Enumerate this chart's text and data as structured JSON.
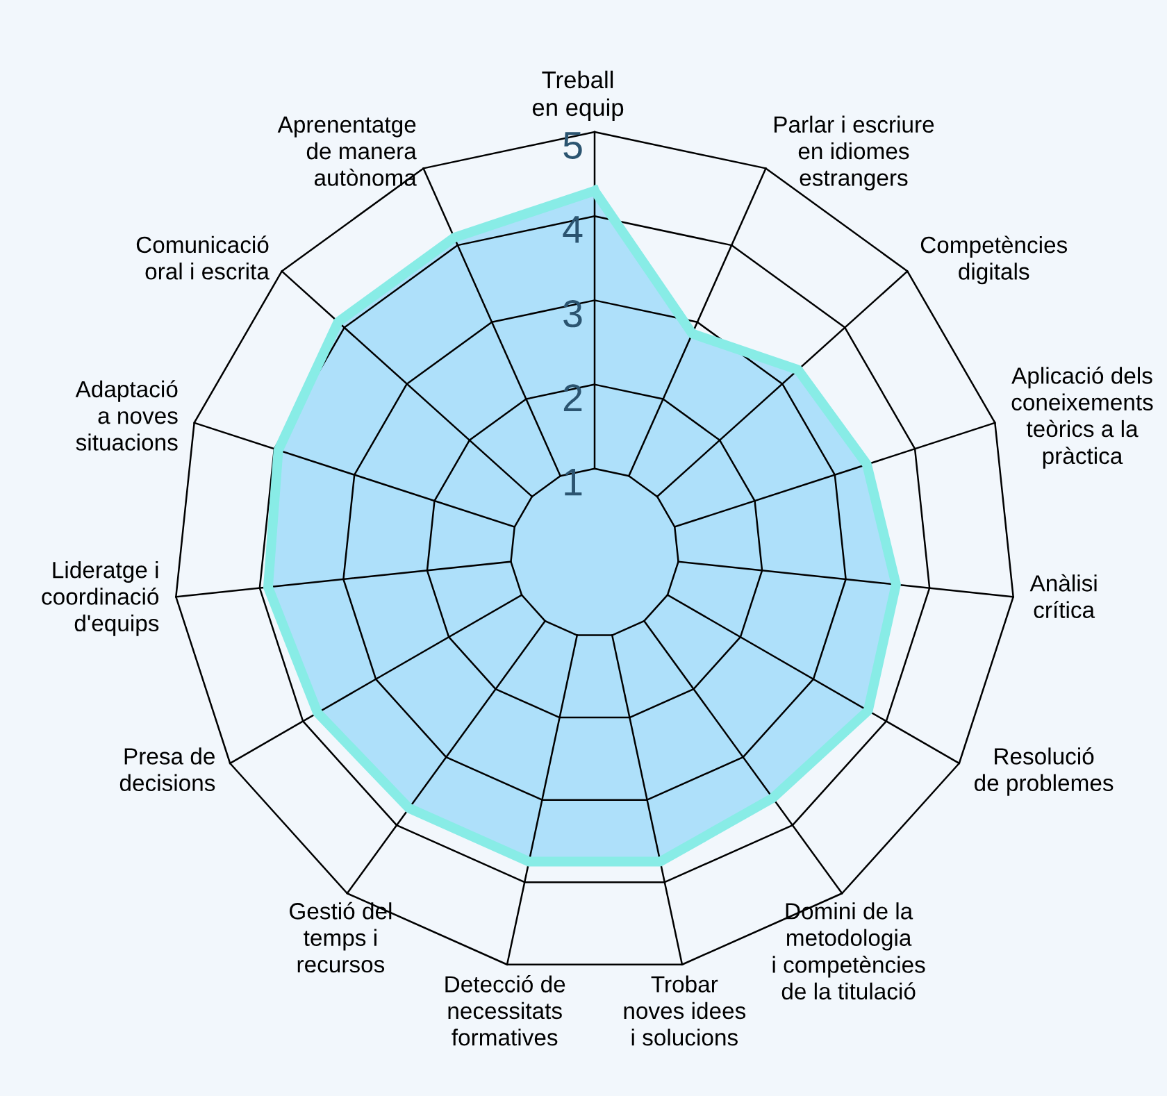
{
  "chart_data": {
    "type": "radar",
    "categories": [
      "Treball\nen equip",
      "Parlar i escriure\nen idiomes\nestrangers",
      "Competències\ndigitals",
      "Aplicació dels\nconeixements\nteòrics a la\npràctica",
      "Anàlisi\ncrítica",
      "Resolució\nde problemes",
      "Domini de la\nmetodologia\ni competències\nde la titulació",
      "Trobar\nnoves idees\ni solucions",
      "Detecció de\nnecessitats\nformatives",
      "Gestió del\ntemps i\nrecursos",
      "Presa de\ndecisions",
      "Lideratge i\ncoordinació\nd'equips",
      "Adaptació\na noves\nsituacions",
      "Comunicació\noral i escrita",
      "Aprenentatge\nde manera\nautònoma"
    ],
    "series": [
      {
        "color": "#88ece6",
        "values": [
          4.3,
          2.85,
          3.25,
          3.4,
          3.6,
          3.75,
          3.6,
          3.75,
          3.75,
          3.75,
          3.8,
          3.9,
          3.95,
          4.1,
          4.1
        ]
      }
    ],
    "ylim": [
      0,
      5
    ],
    "yticks": [
      1,
      2,
      3,
      4,
      5
    ],
    "grid": true,
    "marker": "none",
    "line_style": "solid"
  }
}
